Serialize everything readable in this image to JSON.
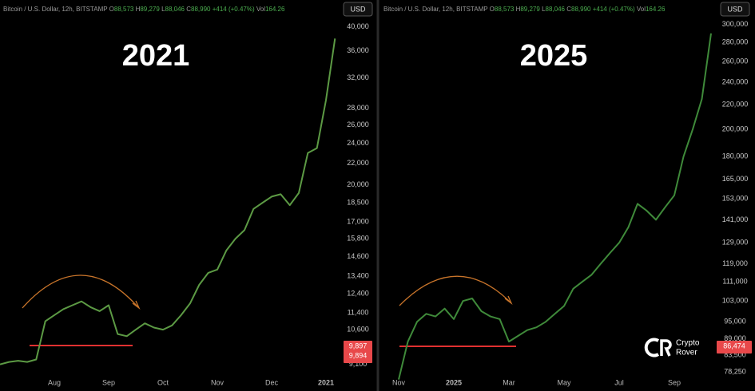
{
  "chart_data": [
    {
      "type": "line",
      "title": "2021",
      "header": {
        "symbol": "Bitcoin / U.S. Dollar, 12h, BITSTAMP",
        "ohlc": [
          {
            "key": "O",
            "value": "88,573"
          },
          {
            "key": "H",
            "value": "89,279"
          },
          {
            "key": "L",
            "value": "88,046"
          },
          {
            "key": "C",
            "value": "88,990"
          }
        ],
        "change": "+414 (+0.47%)",
        "vol_key": "Vol",
        "vol": "164.26"
      },
      "currency": "USD",
      "price_tags": [
        "9,897",
        "9,894"
      ],
      "categories": [
        null,
        null,
        null,
        null,
        null,
        null,
        "Aug",
        null,
        null,
        null,
        null,
        null,
        "Sep",
        null,
        null,
        null,
        null,
        null,
        "Oct",
        null,
        null,
        null,
        null,
        null,
        "Nov",
        null,
        null,
        null,
        null,
        null,
        "Dec",
        null,
        null,
        null,
        null,
        null,
        "2021",
        null
      ],
      "series": [
        {
          "color": "#5c9a44",
          "values": [
            9100,
            9200,
            9250,
            9200,
            9300,
            11000,
            11300,
            11600,
            11800,
            12000,
            11700,
            11500,
            11800,
            10400,
            10300,
            10600,
            10900,
            10700,
            10600,
            10800,
            11300,
            11900,
            12900,
            13600,
            13800,
            15000,
            15800,
            16400,
            18000,
            18500,
            19000,
            19200,
            18300,
            19300,
            23000,
            23500,
            29000,
            38000
          ]
        }
      ],
      "log_scale": true,
      "ylim": [
        8100,
        45000
      ],
      "yticks": [
        {
          "value": 40000,
          "label": "40,000"
        },
        {
          "value": 36000,
          "label": "36,000"
        },
        {
          "value": 32000,
          "label": "32,000"
        },
        {
          "value": 28000,
          "label": "28,000"
        },
        {
          "value": 26000,
          "label": "26,000"
        },
        {
          "value": 24000,
          "label": "24,000"
        },
        {
          "value": 22000,
          "label": "22,000"
        },
        {
          "value": 20000,
          "label": "20,000"
        },
        {
          "value": 18500,
          "label": "18,500"
        },
        {
          "value": 17000,
          "label": "17,000"
        },
        {
          "value": 15800,
          "label": "15,800"
        },
        {
          "value": 14600,
          "label": "14,600"
        },
        {
          "value": 13400,
          "label": "13,400"
        },
        {
          "value": 12400,
          "label": "12,400"
        },
        {
          "value": 11400,
          "label": "11,400"
        },
        {
          "value": 10600,
          "label": "10,600"
        },
        {
          "value": 9100,
          "label": "9,100"
        }
      ]
    },
    {
      "type": "line",
      "title": "2025",
      "header": {
        "symbol": "Bitcoin / U.S. Dollar, 12h, BITSTAMP",
        "ohlc": [
          {
            "key": "O",
            "value": "88,573"
          },
          {
            "key": "H",
            "value": "89,279"
          },
          {
            "key": "L",
            "value": "88,046"
          },
          {
            "key": "C",
            "value": "88,990"
          }
        ],
        "change": "+414 (+0.47%)",
        "vol_key": "Vol",
        "vol": "164.26"
      },
      "currency": "USD",
      "price_tags": [
        "86,474"
      ],
      "logo": [
        "Crypto",
        "Rover"
      ],
      "categories": [
        "Nov",
        null,
        null,
        null,
        null,
        null,
        "2025",
        null,
        null,
        null,
        null,
        null,
        "Mar",
        null,
        null,
        null,
        null,
        null,
        "May",
        null,
        null,
        null,
        null,
        null,
        "Jul",
        null,
        null,
        null,
        null,
        null,
        "Sep",
        null,
        null,
        null,
        null
      ],
      "series": [
        {
          "color": "#3f8a3a",
          "values": [
            76000,
            88000,
            95000,
            98000,
            97000,
            100000,
            96000,
            103000,
            104000,
            99000,
            97000,
            96000,
            88000,
            90000,
            92000,
            93000,
            95000,
            98000,
            101000,
            108000,
            111000,
            114000,
            119000,
            124000,
            129000,
            137000,
            150000,
            146000,
            141000,
            148000,
            155000,
            180000,
            200000,
            225000,
            290000
          ]
        }
      ],
      "log_scale": true,
      "ylim": [
        72700,
        330000
      ],
      "yticks": [
        {
          "value": 300000,
          "label": "300,000"
        },
        {
          "value": 280000,
          "label": "280,000"
        },
        {
          "value": 260000,
          "label": "260,000"
        },
        {
          "value": 240000,
          "label": "240,000"
        },
        {
          "value": 220000,
          "label": "220,000"
        },
        {
          "value": 200000,
          "label": "200,000"
        },
        {
          "value": 180000,
          "label": "180,000"
        },
        {
          "value": 165000,
          "label": "165,000"
        },
        {
          "value": 153000,
          "label": "153,000"
        },
        {
          "value": 141000,
          "label": "141,000"
        },
        {
          "value": 129000,
          "label": "129,000"
        },
        {
          "value": 119000,
          "label": "119,000"
        },
        {
          "value": 111000,
          "label": "111,000"
        },
        {
          "value": 103000,
          "label": "103,000"
        },
        {
          "value": 95000,
          "label": "95,000"
        },
        {
          "value": 89000,
          "label": "89,000"
        },
        {
          "value": 83500,
          "label": "83,500"
        },
        {
          "value": 78250,
          "label": "78,250"
        }
      ]
    }
  ]
}
